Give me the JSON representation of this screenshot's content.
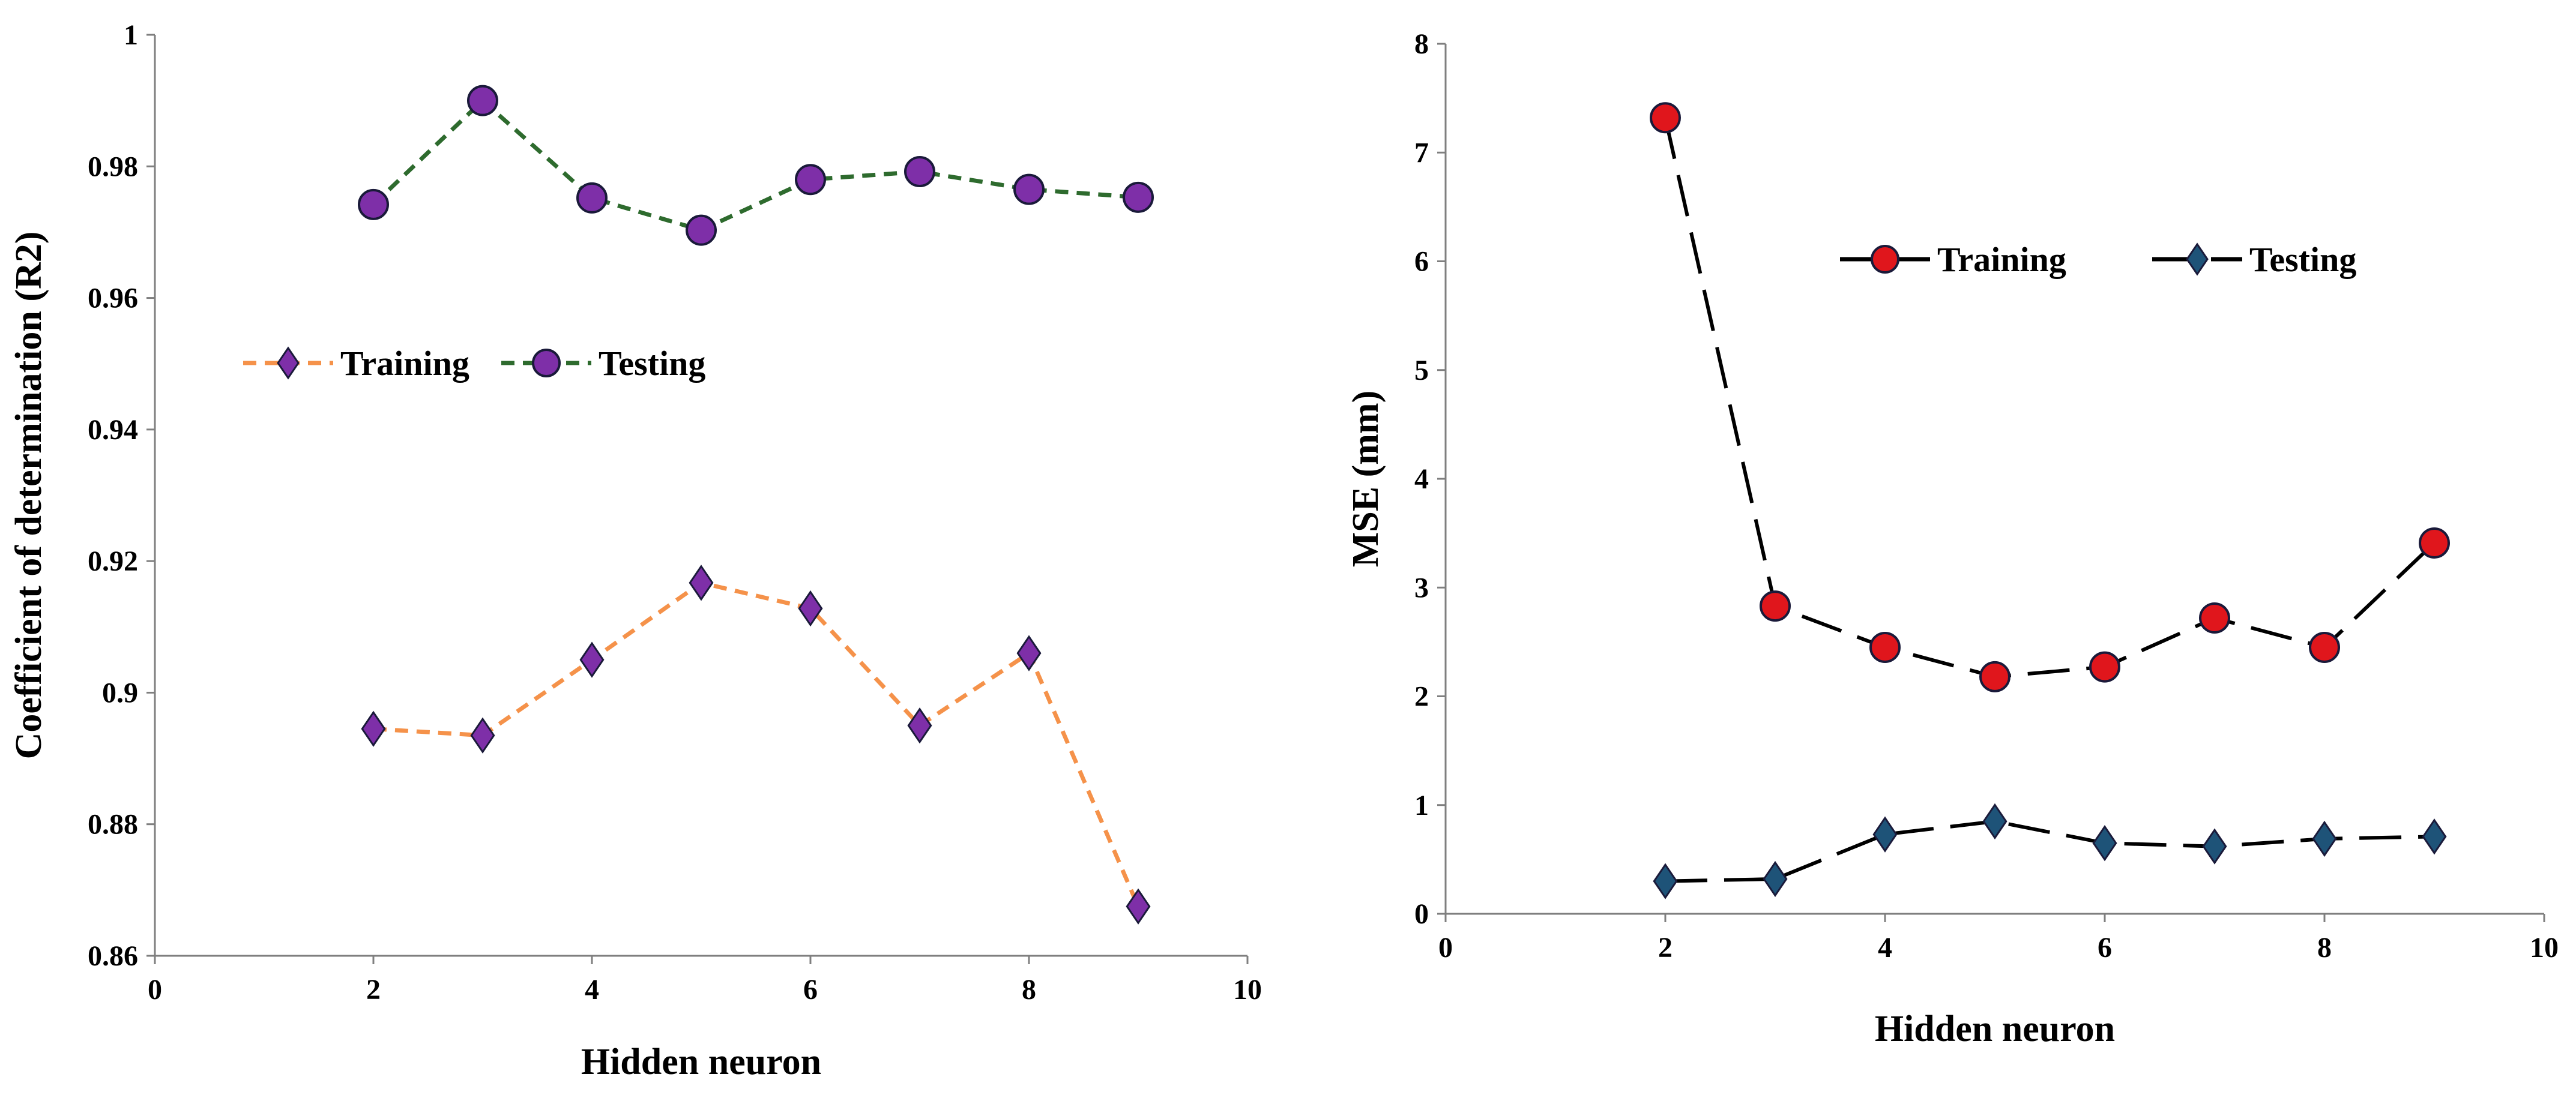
{
  "chart_data": [
    {
      "type": "line",
      "xlabel": "Hidden neuron",
      "ylabel": "Coefficient of determination  (R2)",
      "xlim": [
        0,
        10
      ],
      "ylim": [
        0.86,
        1
      ],
      "xticks": [
        "0",
        "2",
        "4",
        "6",
        "8",
        "10"
      ],
      "yticks": [
        "0.86",
        "0.88",
        "0.9",
        "0.92",
        "0.94",
        "0.96",
        "0.98",
        "1"
      ],
      "x": [
        2,
        3,
        4,
        5,
        6,
        7,
        8,
        9
      ],
      "series": [
        {
          "name": "Training",
          "values": [
            0.8945,
            0.8935,
            0.905,
            0.9167,
            0.9128,
            0.895,
            0.906,
            0.8675
          ],
          "color": "#f5924a",
          "marker": "diamond",
          "marker_fill": "#7e2fa8"
        },
        {
          "name": "Testing",
          "values": [
            0.9742,
            0.99,
            0.9752,
            0.9703,
            0.978,
            0.9792,
            0.9765,
            0.9753
          ],
          "color": "#2e6b2e",
          "marker": "circle",
          "marker_fill": "#7e2fa8"
        }
      ],
      "legend": "center-left"
    },
    {
      "type": "line",
      "xlabel": "Hidden neuron",
      "ylabel": "MSE (mm)",
      "xlim": [
        0,
        10
      ],
      "ylim": [
        0,
        8
      ],
      "xticks": [
        "0",
        "2",
        "4",
        "6",
        "8",
        "10"
      ],
      "yticks": [
        "0",
        "1",
        "2",
        "3",
        "4",
        "5",
        "6",
        "7",
        "8"
      ],
      "x": [
        2,
        3,
        4,
        5,
        6,
        7,
        8,
        9
      ],
      "series": [
        {
          "name": "Training",
          "values": [
            7.32,
            2.83,
            2.45,
            2.18,
            2.27,
            2.72,
            2.45,
            3.41
          ],
          "color": "#000000",
          "marker": "circle",
          "marker_fill": "#e0161c"
        },
        {
          "name": "Testing",
          "values": [
            0.3,
            0.32,
            0.73,
            0.85,
            0.65,
            0.62,
            0.69,
            0.71
          ],
          "color": "#000000",
          "marker": "diamond",
          "marker_fill": "#1e5378"
        }
      ],
      "legend": "top-right"
    }
  ]
}
